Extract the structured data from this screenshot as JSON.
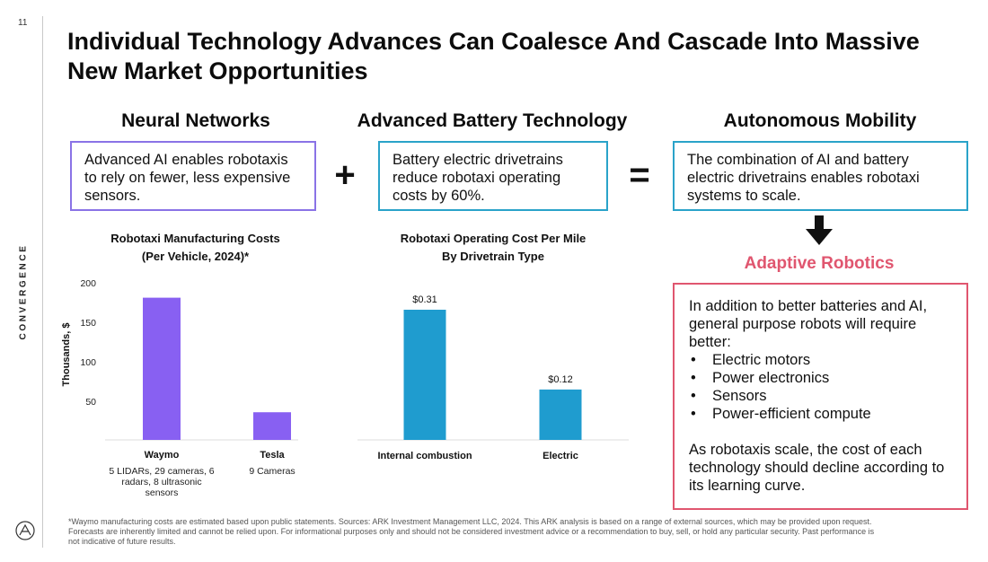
{
  "page": {
    "number": "11",
    "brand": "CONVERGENCE"
  },
  "title": "Individual Technology Advances Can Coalesce And Cascade Into Massive New Market Opportunities",
  "columns": {
    "neural": {
      "heading": "Neural Networks",
      "text": "Advanced AI enables robotaxis to rely on fewer, less expensive sensors."
    },
    "battery": {
      "heading": "Advanced Battery Technology",
      "text": "Battery electric drivetrains reduce robotaxi operating costs by 60%."
    },
    "autonomous": {
      "heading": "Autonomous Mobility",
      "text": "The combination of AI and battery electric drivetrains enables robotaxi systems to scale."
    }
  },
  "operators": {
    "plus": "+",
    "equals": "="
  },
  "adaptive": {
    "heading": "Adaptive Robotics",
    "intro": "In addition to better batteries and AI, general purpose robots will require better:",
    "items": [
      "Electric motors",
      "Power electronics",
      "Sensors",
      "Power-efficient compute"
    ],
    "outro": "As robotaxis scale, the cost of each technology should decline according to its learning curve."
  },
  "footnote": "*Waymo manufacturing costs are estimated based upon public statements. Sources: ARK Investment Management LLC, 2024. This ARK analysis is based on a range of external sources, which may be provided upon request. Forecasts are inherently limited and cannot be relied upon. For informational purposes only and should not be considered investment advice or a recommendation to buy, sell, or hold any particular security. Past performance is not indicative of future results.",
  "colors": {
    "purple": "#8860f2",
    "blue": "#1f9ccf",
    "pink": "#e0566f",
    "box_blue": "#2aa3c9",
    "box_purple": "#8a73e6"
  },
  "icons": {
    "down_arrow": "arrow-down-icon",
    "logo": "ark-logo-icon"
  },
  "chart_data": [
    {
      "type": "bar",
      "title_line1": "Robotaxi Manufacturing Costs",
      "title_line2": "(Per Vehicle, 2024)*",
      "ylabel": "Thousands, $",
      "yticks": [
        "200",
        "150",
        "100",
        "50"
      ],
      "ylim": [
        0,
        200
      ],
      "categories": [
        "Waymo",
        "Tesla"
      ],
      "subtitles": [
        [
          "5 LIDARs, 29 cameras, 6",
          "radars, 8 ultrasonic",
          "sensors"
        ],
        [
          "9 Cameras"
        ]
      ],
      "values": [
        180,
        35
      ]
    },
    {
      "type": "bar",
      "title_line1": "Robotaxi Operating Cost Per Mile",
      "title_line2": "By Drivetrain Type",
      "ylim": [
        0,
        0.4
      ],
      "categories": [
        "Internal combustion",
        "Electric"
      ],
      "values": [
        0.31,
        0.12
      ],
      "labels": [
        "$0.31",
        "$0.12"
      ]
    }
  ]
}
